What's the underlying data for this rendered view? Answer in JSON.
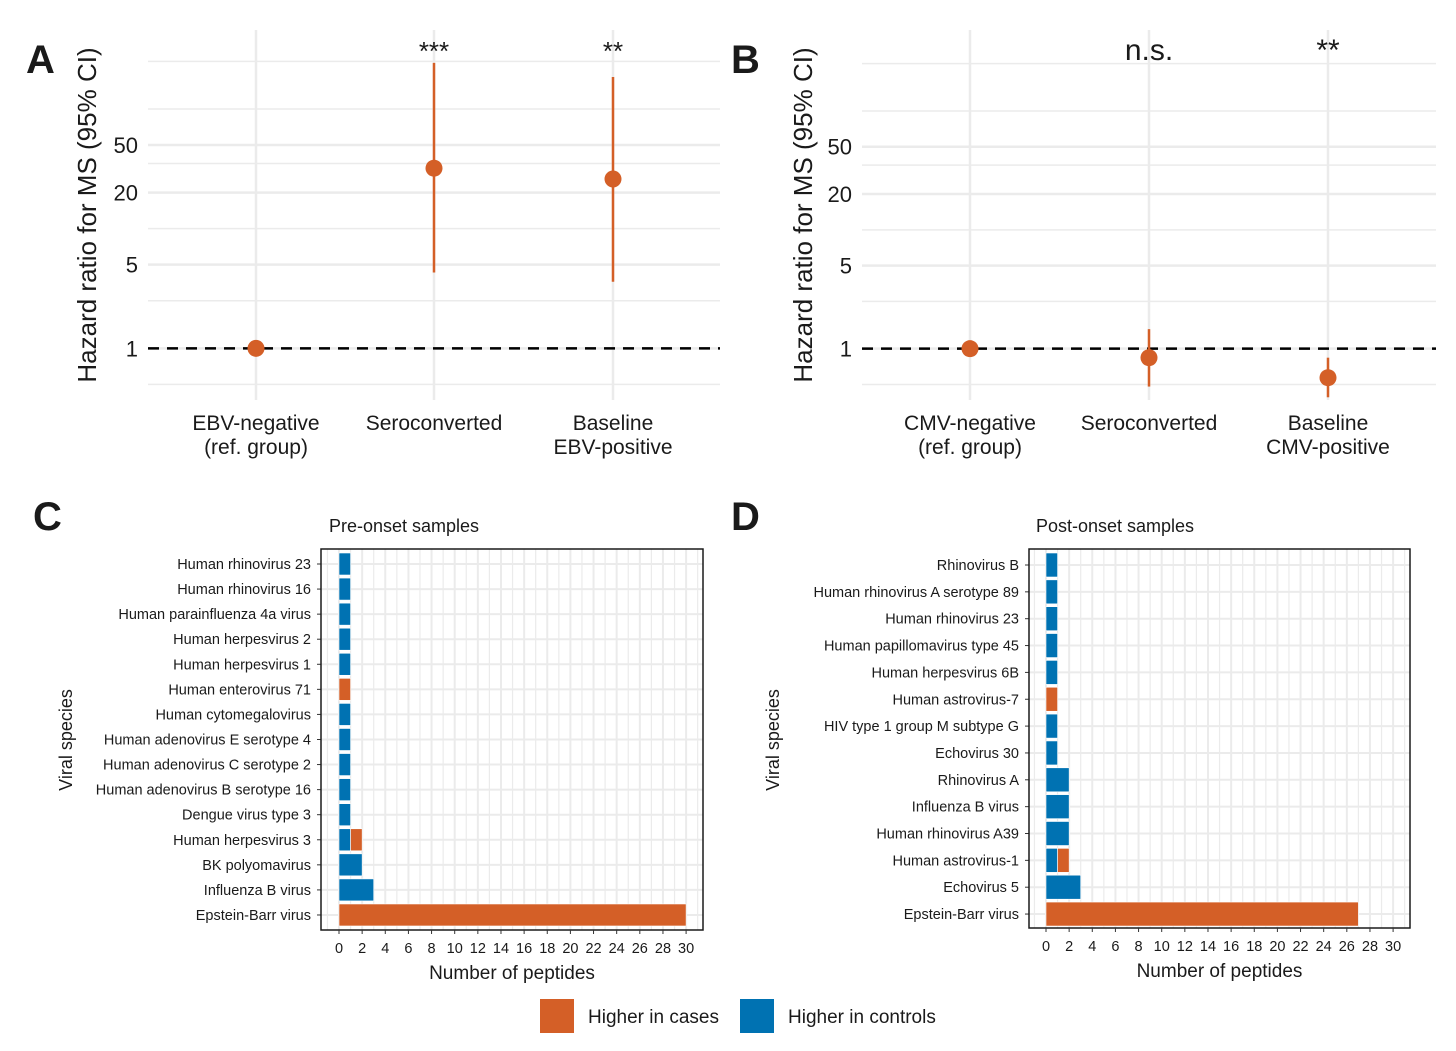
{
  "colors": {
    "cases": "#D45F27",
    "controls": "#0072B2",
    "grid": "#EBEBEB",
    "ref_line": "#000000"
  },
  "legend": {
    "cases": "Higher in cases",
    "controls": "Higher in controls"
  },
  "chart_data": [
    {
      "panel": "A",
      "type": "scatter",
      "subtype": "point-range",
      "yscale": "log",
      "ylabel": "Hazard ratio for MS (95% CI)",
      "yticks": [
        1,
        5,
        20,
        50
      ],
      "ytick_labels": [
        "1",
        "5",
        "20",
        "50"
      ],
      "ylim": [
        0.37,
        457
      ],
      "reference_line": 1,
      "categories": [
        [
          "EBV-negative",
          "(ref. group)"
        ],
        [
          "Seroconverted"
        ],
        [
          "Baseline",
          "EBV-positive"
        ]
      ],
      "points": [
        {
          "hr": 1,
          "lo": null,
          "hi": null,
          "sig": ""
        },
        {
          "hr": 32,
          "lo": 4.3,
          "hi": 243,
          "sig": "***"
        },
        {
          "hr": 26,
          "lo": 3.6,
          "hi": 185,
          "sig": "**"
        }
      ]
    },
    {
      "panel": "B",
      "type": "scatter",
      "subtype": "point-range",
      "yscale": "log",
      "ylabel": "Hazard ratio for MS (95% CI)",
      "yticks": [
        1,
        5,
        20,
        50
      ],
      "ytick_labels": [
        "1",
        "5",
        "20",
        "50"
      ],
      "ylim": [
        0.37,
        480
      ],
      "reference_line": 1,
      "categories": [
        [
          "CMV-negative",
          "(ref. group)"
        ],
        [
          "Seroconverted"
        ],
        [
          "Baseline",
          "CMV-positive"
        ]
      ],
      "points": [
        {
          "hr": 1,
          "lo": null,
          "hi": null,
          "sig": ""
        },
        {
          "hr": 0.84,
          "lo": 0.48,
          "hi": 1.46,
          "sig": "n.s."
        },
        {
          "hr": 0.57,
          "lo": 0.39,
          "hi": 0.84,
          "sig": "**"
        }
      ]
    },
    {
      "panel": "C",
      "type": "bar",
      "orientation": "horizontal",
      "stacked": true,
      "title": "Pre-onset samples",
      "xlabel": "Number of peptides",
      "ylabel": "Viral species",
      "xlim": [
        -1.5,
        31.5
      ],
      "xticks": [
        0,
        2,
        4,
        6,
        8,
        10,
        12,
        14,
        16,
        18,
        20,
        22,
        24,
        26,
        28,
        30
      ],
      "categories": [
        "Human rhinovirus 23",
        "Human rhinovirus 16",
        "Human parainfluenza 4a virus",
        "Human herpesvirus 2",
        "Human herpesvirus 1",
        "Human enterovirus 71",
        "Human cytomegalovirus",
        "Human adenovirus E serotype 4",
        "Human adenovirus C serotype 2",
        "Human adenovirus B serotype 16",
        "Dengue virus type 3",
        "Human herpesvirus 3",
        "BK polyomavirus",
        "Influenza B virus",
        "Epstein-Barr virus"
      ],
      "series": [
        {
          "name": "Higher in controls",
          "values": [
            1,
            1,
            1,
            1,
            1,
            0,
            1,
            1,
            1,
            1,
            1,
            1,
            2,
            3,
            0
          ]
        },
        {
          "name": "Higher in cases",
          "values": [
            0,
            0,
            0,
            0,
            0,
            1,
            0,
            0,
            0,
            0,
            0,
            1,
            0,
            0,
            30
          ]
        }
      ]
    },
    {
      "panel": "D",
      "type": "bar",
      "orientation": "horizontal",
      "stacked": true,
      "title": "Post-onset samples",
      "xlabel": "Number of peptides",
      "ylabel": "Viral species",
      "xlim": [
        -1.5,
        31.5
      ],
      "xticks": [
        0,
        2,
        4,
        6,
        8,
        10,
        12,
        14,
        16,
        18,
        20,
        22,
        24,
        26,
        28,
        30
      ],
      "categories": [
        "Rhinovirus B",
        "Human rhinovirus A serotype 89",
        "Human rhinovirus 23",
        "Human papillomavirus type 45",
        "Human herpesvirus 6B",
        "Human astrovirus-7",
        "HIV type 1 group M subtype G",
        "Echovirus 30",
        "Rhinovirus A",
        "Influenza B virus",
        "Human rhinovirus A39",
        "Human astrovirus-1",
        "Echovirus 5",
        "Epstein-Barr virus"
      ],
      "series": [
        {
          "name": "Higher in controls",
          "values": [
            1,
            1,
            1,
            1,
            1,
            0,
            1,
            1,
            2,
            2,
            2,
            1,
            3,
            0
          ]
        },
        {
          "name": "Higher in cases",
          "values": [
            0,
            0,
            0,
            0,
            0,
            1,
            0,
            0,
            0,
            0,
            0,
            1,
            0,
            27
          ]
        }
      ]
    }
  ]
}
